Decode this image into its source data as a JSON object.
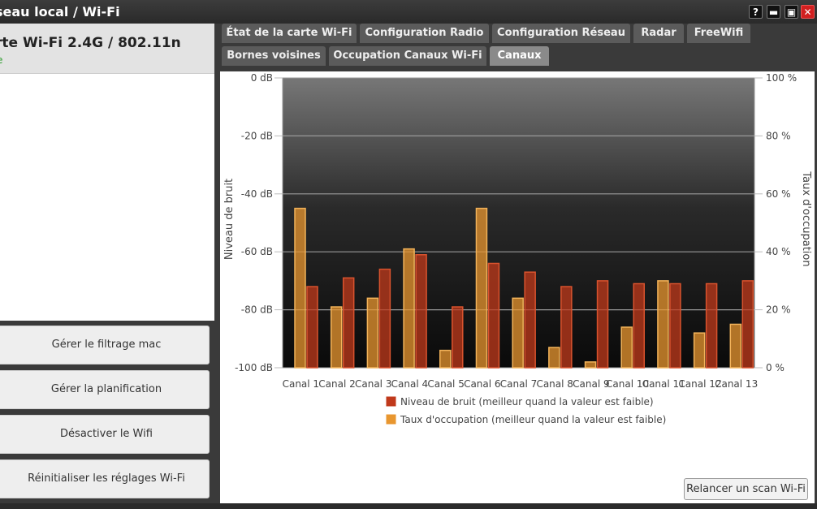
{
  "window": {
    "title": "seau local / Wi-Fi",
    "help": "?",
    "minimize": "▬",
    "maximize": "▣",
    "close": "✕"
  },
  "left": {
    "header_title": "rte Wi-Fi 2.4G / 802.11n",
    "header_sub": "e",
    "buttons": [
      "Gérer le filtrage mac",
      "Gérer la planification",
      "Désactiver le Wifi",
      "Réinitialiser les réglages Wi-Fi"
    ]
  },
  "tabs": {
    "row1": [
      "État de la carte Wi-Fi",
      "Configuration Radio",
      "Configuration Réseau",
      "Radar",
      "FreeWifi"
    ],
    "row2": [
      "Bornes voisines",
      "Occupation Canaux Wi-Fi",
      "Canaux"
    ],
    "active": "Canaux"
  },
  "rescan_label": "Relancer un scan Wi-Fi",
  "chart_data": {
    "type": "bar",
    "categories": [
      "Canal 1",
      "Canal 2",
      "Canal 3",
      "Canal 4",
      "Canal 5",
      "Canal 6",
      "Canal 7",
      "Canal 8",
      "Canal 9",
      "Canal 10",
      "Canal 11",
      "Canal 12",
      "Canal 13"
    ],
    "ylabel": "Niveau de bruit",
    "ylabel_right": "Taux d'occupation",
    "yticks": [
      "0 dB",
      "-20 dB",
      "-40 dB",
      "-60 dB",
      "-80 dB",
      "-100 dB"
    ],
    "yticks_right": [
      "100 %",
      "80 %",
      "60 %",
      "40 %",
      "20 %",
      "0 %"
    ],
    "ylim": [
      -100,
      0
    ],
    "ylim_right": [
      0,
      100
    ],
    "grid": true,
    "legend_placement": "bottom",
    "series": [
      {
        "name": "Niveau de bruit (meilleur quand la valeur est faible)",
        "axis": "left",
        "color": "#c0391b",
        "values": [
          -72,
          -69,
          -66,
          -61,
          -79,
          -64,
          -67,
          -72,
          -70,
          -71,
          -71,
          -71,
          -70
        ]
      },
      {
        "name": "Taux d'occupation (meilleur quand la valeur est faible)",
        "axis": "right",
        "color": "#e8962f",
        "values": [
          55,
          21,
          24,
          41,
          6,
          55,
          24,
          7,
          2,
          14,
          30,
          12,
          15
        ]
      }
    ]
  }
}
